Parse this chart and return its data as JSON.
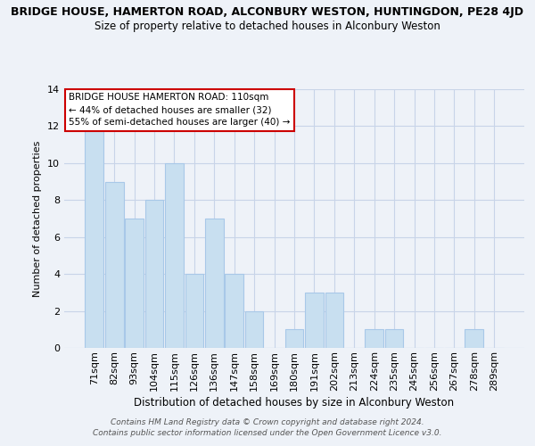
{
  "title_top": "BRIDGE HOUSE, HAMERTON ROAD, ALCONBURY WESTON, HUNTINGDON, PE28 4JD",
  "title_sub": "Size of property relative to detached houses in Alconbury Weston",
  "xlabel": "Distribution of detached houses by size in Alconbury Weston",
  "ylabel": "Number of detached properties",
  "bin_labels": [
    "71sqm",
    "82sqm",
    "93sqm",
    "104sqm",
    "115sqm",
    "126sqm",
    "136sqm",
    "147sqm",
    "158sqm",
    "169sqm",
    "180sqm",
    "191sqm",
    "202sqm",
    "213sqm",
    "224sqm",
    "235sqm",
    "245sqm",
    "256sqm",
    "267sqm",
    "278sqm",
    "289sqm"
  ],
  "values": [
    12,
    9,
    7,
    8,
    10,
    4,
    7,
    4,
    2,
    0,
    1,
    3,
    3,
    0,
    1,
    1,
    0,
    0,
    0,
    1,
    0
  ],
  "bar_color": "#c8dff0",
  "bar_edge_color": "#a8c8e8",
  "grid_color": "#c8d4e8",
  "background_color": "#eef2f8",
  "ylim": [
    0,
    14
  ],
  "yticks": [
    0,
    2,
    4,
    6,
    8,
    10,
    12,
    14
  ],
  "annotation_lines": [
    "BRIDGE HOUSE HAMERTON ROAD: 110sqm",
    "← 44% of detached houses are smaller (32)",
    "55% of semi-detached houses are larger (40) →"
  ],
  "annotation_box_color": "#ffffff",
  "annotation_border_color": "#cc0000",
  "footer_line1": "Contains HM Land Registry data © Crown copyright and database right 2024.",
  "footer_line2": "Contains public sector information licensed under the Open Government Licence v3.0."
}
